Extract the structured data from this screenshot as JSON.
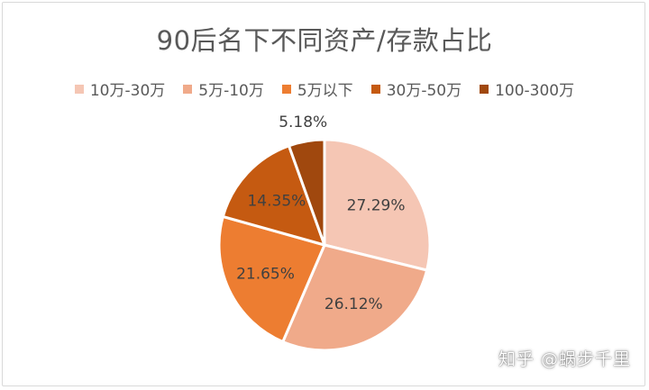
{
  "chart_data": {
    "type": "pie",
    "title": "90后名下不同资产/存款占比",
    "legend_position": "top",
    "categories": [
      "10万-30万",
      "5万-10万",
      "5万以下",
      "30万-50万",
      "100-300万"
    ],
    "values": [
      27.29,
      26.12,
      21.65,
      14.35,
      5.18
    ],
    "labels": [
      "27.29%",
      "26.12%",
      "21.65%",
      "14.35%",
      "5.18%"
    ],
    "colors": [
      "#f5c6b4",
      "#f0aa8a",
      "#ed7d31",
      "#c55a11",
      "#a0480e"
    ]
  },
  "watermark": "知乎 @蜗步千里"
}
